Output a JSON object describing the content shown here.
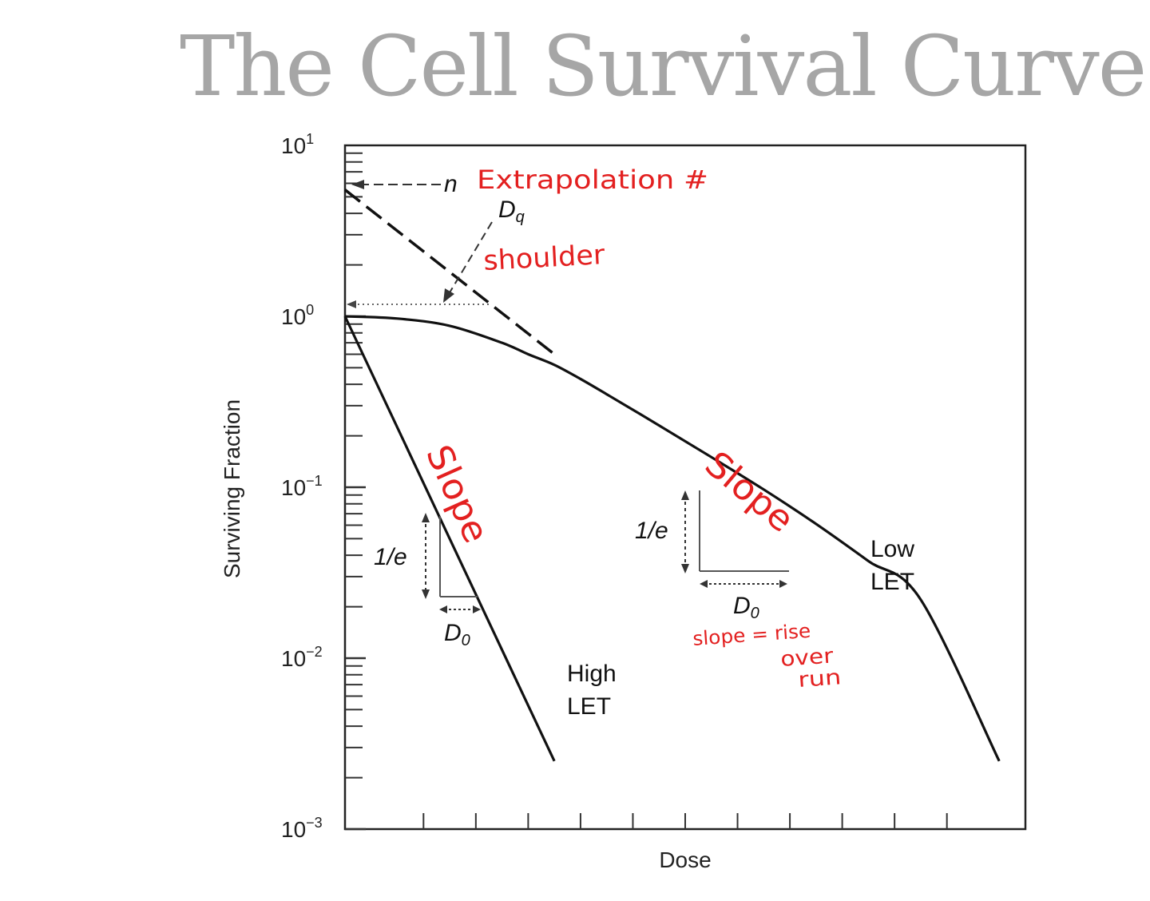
{
  "slide": {
    "title": "The Cell Survival Curve"
  },
  "chart_data": {
    "type": "line",
    "title": "",
    "xlabel": "Dose",
    "ylabel": "Surviving Fraction",
    "y_scale": "log",
    "ylim": [
      0.001,
      10
    ],
    "y_ticks": [
      {
        "base": "10",
        "exp": "1",
        "value": 10
      },
      {
        "base": "10",
        "exp": "0",
        "value": 1
      },
      {
        "base": "10",
        "exp": "−1",
        "value": 0.1
      },
      {
        "base": "10",
        "exp": "−2",
        "value": 0.01
      },
      {
        "base": "10",
        "exp": "−3",
        "value": 0.001
      }
    ],
    "xlim": [
      0,
      13
    ],
    "x_ticks_unlabeled": [
      1.5,
      2.5,
      3.5,
      4.5,
      5.5,
      6.5,
      7.5,
      8.5,
      9.5,
      10.5,
      11.5
    ],
    "grid": false,
    "series": [
      {
        "name": "High LET",
        "x": [
          0,
          4
        ],
        "y": [
          1,
          0.0025
        ]
      },
      {
        "name": "Low LET",
        "x": [
          0,
          1,
          2,
          3,
          3.5,
          4,
          4.5,
          5,
          6,
          7,
          8,
          9,
          10,
          11,
          12.5
        ],
        "y": [
          1,
          0.97,
          0.88,
          0.7,
          0.6,
          0.52,
          0.43,
          0.35,
          0.23,
          0.15,
          0.097,
          0.061,
          0.037,
          0.022,
          0.0025
        ]
      }
    ],
    "extrapolation_line": {
      "x": [
        0,
        4
      ],
      "y": [
        5.5,
        0.6
      ]
    },
    "annotations": {
      "n_label": "n",
      "dq_label": "D",
      "dq_sub": "q",
      "high_let": {
        "line1": "High",
        "line2": "LET",
        "inv_e": "1/e",
        "d0": "D",
        "d0_sub": "0"
      },
      "low_let": {
        "line1": "Low",
        "line2": "LET",
        "inv_e": "1/e",
        "d0": "D",
        "d0_sub": "0"
      }
    },
    "handwritten": {
      "extrapolation": "Extrapolation #",
      "shoulder": "shoulder",
      "slope_high": "Slope",
      "slope_low": "Slope",
      "rise_line1": "slope = rise",
      "rise_line2": "over",
      "rise_line3": "run"
    },
    "colors": {
      "curve": "#111111",
      "annotation_red": "#e32020",
      "title_gray": "#a6a6a6"
    }
  }
}
